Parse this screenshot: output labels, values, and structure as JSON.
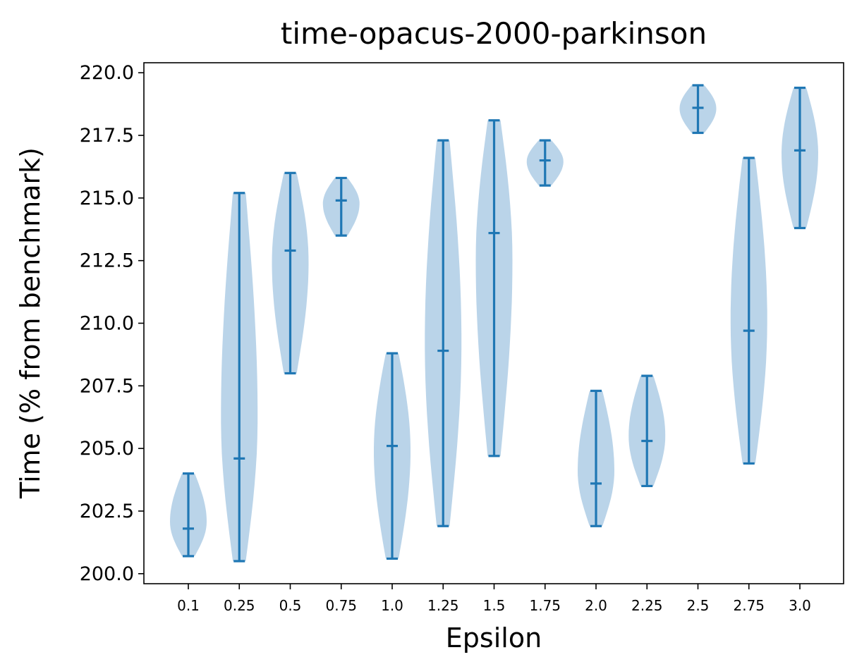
{
  "chart_data": {
    "type": "violin",
    "title": "time-opacus-2000-parkinson",
    "xlabel": "Epsilon",
    "ylabel": "Time (% from benchmark)",
    "categories": [
      "0.1",
      "0.25",
      "0.5",
      "0.75",
      "1.0",
      "1.25",
      "1.5",
      "1.75",
      "2.0",
      "2.25",
      "2.5",
      "2.75",
      "3.0"
    ],
    "ylim": [
      199.6,
      220.4
    ],
    "yticks": [
      "200.0",
      "202.5",
      "205.0",
      "207.5",
      "210.0",
      "212.5",
      "215.0",
      "217.5",
      "220.0"
    ],
    "ytick_values": [
      200.0,
      202.5,
      205.0,
      207.5,
      210.0,
      212.5,
      215.0,
      217.5,
      220.0
    ],
    "grid": false,
    "colors": {
      "body": "#a9c9e4",
      "lines": "#1f77b4"
    },
    "series": [
      {
        "category": "0.1",
        "min": 200.7,
        "median": 201.8,
        "max": 204.0
      },
      {
        "category": "0.25",
        "min": 200.5,
        "median": 204.6,
        "max": 215.2
      },
      {
        "category": "0.5",
        "min": 208.0,
        "median": 212.9,
        "max": 216.0
      },
      {
        "category": "0.75",
        "min": 213.5,
        "median": 214.9,
        "max": 215.8
      },
      {
        "category": "1.0",
        "min": 200.6,
        "median": 205.1,
        "max": 208.8
      },
      {
        "category": "1.25",
        "min": 201.9,
        "median": 208.9,
        "max": 217.3
      },
      {
        "category": "1.5",
        "min": 204.7,
        "median": 213.6,
        "max": 218.1
      },
      {
        "category": "1.75",
        "min": 215.5,
        "median": 216.5,
        "max": 217.3
      },
      {
        "category": "2.0",
        "min": 201.9,
        "median": 203.6,
        "max": 207.3
      },
      {
        "category": "2.25",
        "min": 203.5,
        "median": 205.3,
        "max": 207.9
      },
      {
        "category": "2.5",
        "min": 217.6,
        "median": 218.6,
        "max": 219.5
      },
      {
        "category": "2.75",
        "min": 204.4,
        "median": 209.7,
        "max": 216.6
      },
      {
        "category": "3.0",
        "min": 213.8,
        "median": 216.9,
        "max": 219.4
      }
    ]
  }
}
